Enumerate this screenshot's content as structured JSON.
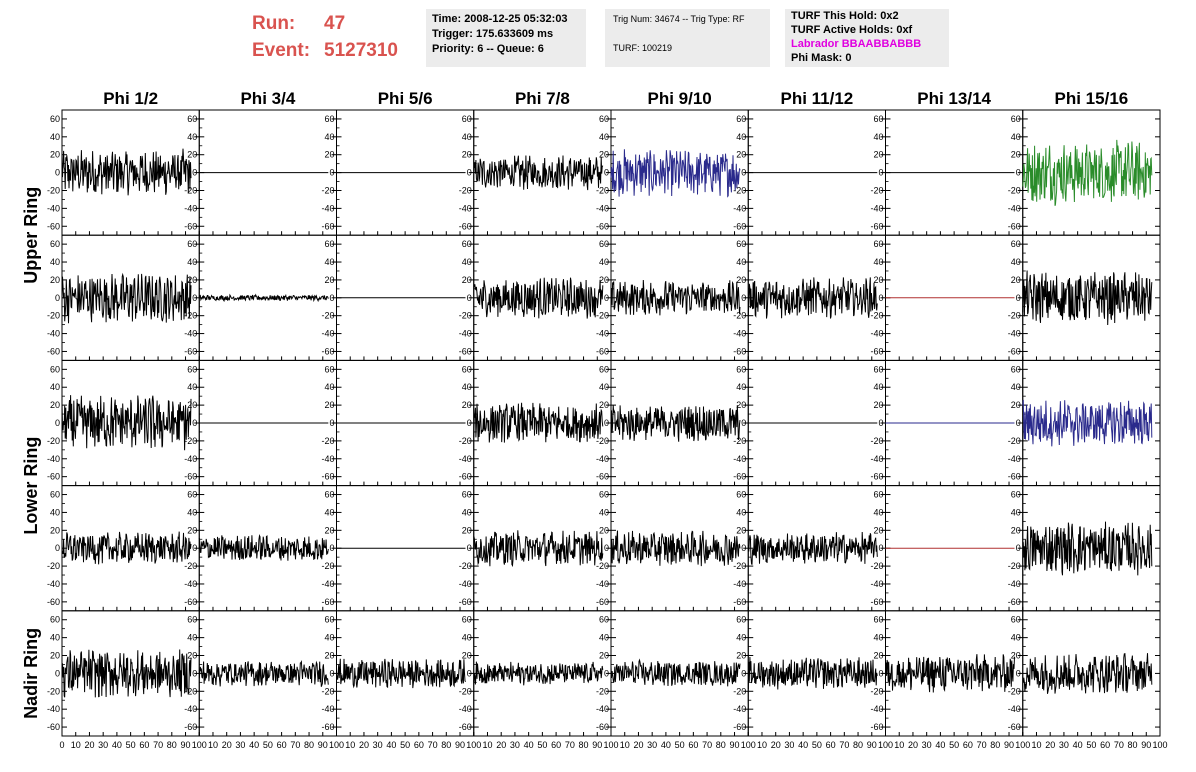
{
  "header": {
    "run_label": "Run:",
    "run_value": "47",
    "event_label": "Event:",
    "event_value": "5127310",
    "time": "Time: 2008-12-25 05:32:03",
    "trigger": "Trigger: 175.633609 ms",
    "priority": "Priority: 6 -- Queue: 6",
    "trig_num": "Trig Num: 34674 -- Trig Type: RF",
    "turf": "TURF: 100219",
    "turf_this_hold": "TURF This Hold: 0x2",
    "turf_active_holds": "TURF Active Holds: 0xf",
    "labrador": "Labrador BBAABBABBB",
    "phi_mask": "Phi Mask: 0"
  },
  "colors": {
    "header_red": "#d9534f",
    "labrador": "#e000e0"
  },
  "chart_data": {
    "type": "line",
    "columns": [
      "Phi 1/2",
      "Phi 3/4",
      "Phi 5/6",
      "Phi 7/8",
      "Phi 9/10",
      "Phi 11/12",
      "Phi 13/14",
      "Phi 15/16"
    ],
    "row_groups": [
      {
        "label": "Upper Ring",
        "rows": [
          0,
          1
        ]
      },
      {
        "label": "Lower Ring",
        "rows": [
          2,
          3
        ]
      },
      {
        "label": "Nadir Ring",
        "rows": [
          4
        ]
      }
    ],
    "xlim": [
      0,
      100
    ],
    "ylim": [
      -70,
      70
    ],
    "x_ticks": [
      0,
      10,
      20,
      30,
      40,
      50,
      60,
      70,
      80,
      90,
      100
    ],
    "x_tick_labels": [
      "0",
      "10",
      "20",
      "30",
      "40",
      "50",
      "60",
      "70",
      "80",
      "90",
      "100"
    ],
    "y_ticks": [
      -60,
      -40,
      -20,
      0,
      20,
      40,
      60
    ],
    "y_tick_labels": [
      "-60",
      "-40",
      "-20",
      "0",
      "20",
      "40",
      "60"
    ],
    "traces": [
      [
        {
          "color": "#000000",
          "amp": 16
        },
        {
          "color": "#000000",
          "amp": 0
        },
        {
          "color": "#000000",
          "amp": 0
        },
        {
          "color": "#000000",
          "amp": 12
        },
        {
          "color": "#2a2a8c",
          "amp": 16
        },
        {
          "color": "#000000",
          "amp": 0
        },
        {
          "color": "#000000",
          "amp": 0
        },
        {
          "color": "#2a8c2a",
          "amp": 22
        }
      ],
      [
        {
          "color": "#000000",
          "amp": 17
        },
        {
          "color": "#000000",
          "amp": 2
        },
        {
          "color": "#000000",
          "amp": 0
        },
        {
          "color": "#000000",
          "amp": 14
        },
        {
          "color": "#000000",
          "amp": 12
        },
        {
          "color": "#000000",
          "amp": 14
        },
        {
          "color": "#b03030",
          "amp": 0
        },
        {
          "color": "#000000",
          "amp": 18
        }
      ],
      [
        {
          "color": "#000000",
          "amp": 19
        },
        {
          "color": "#000000",
          "amp": 0
        },
        {
          "color": "#000000",
          "amp": 0
        },
        {
          "color": "#000000",
          "amp": 14
        },
        {
          "color": "#000000",
          "amp": 13
        },
        {
          "color": "#000000",
          "amp": 0
        },
        {
          "color": "#2a2a8c",
          "amp": 0
        },
        {
          "color": "#2a2a8c",
          "amp": 16
        }
      ],
      [
        {
          "color": "#000000",
          "amp": 11
        },
        {
          "color": "#000000",
          "amp": 9
        },
        {
          "color": "#000000",
          "amp": 0
        },
        {
          "color": "#000000",
          "amp": 12
        },
        {
          "color": "#000000",
          "amp": 12
        },
        {
          "color": "#000000",
          "amp": 11
        },
        {
          "color": "#b03030",
          "amp": 0
        },
        {
          "color": "#000000",
          "amp": 18
        }
      ],
      [
        {
          "color": "#000000",
          "amp": 17
        },
        {
          "color": "#000000",
          "amp": 9
        },
        {
          "color": "#000000",
          "amp": 10
        },
        {
          "color": "#000000",
          "amp": 8
        },
        {
          "color": "#000000",
          "amp": 9
        },
        {
          "color": "#000000",
          "amp": 11
        },
        {
          "color": "#000000",
          "amp": 13
        },
        {
          "color": "#000000",
          "amp": 14
        }
      ]
    ]
  }
}
